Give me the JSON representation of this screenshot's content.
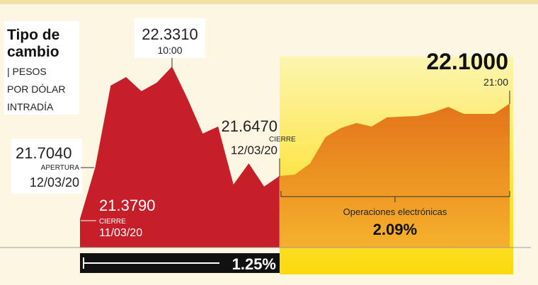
{
  "chart_data": {
    "type": "area",
    "title": "Tipo de cambio",
    "subtitle": [
      "| PESOS",
      "POR DÓLAR",
      "INTRADÍA"
    ],
    "categories": [
      null,
      null,
      null,
      null,
      null,
      null,
      null,
      null,
      null,
      null,
      null,
      null,
      null,
      null,
      null,
      null,
      null,
      null,
      null,
      null,
      null,
      null,
      null,
      null,
      null,
      null,
      null,
      null,
      null
    ],
    "series": [
      {
        "color": "#c61f2a",
        "values": [
          21.379,
          21.704,
          22.212,
          22.265,
          22.177,
          22.23,
          22.331,
          22.132,
          21.912,
          21.956,
          21.594,
          21.726,
          21.581,
          21.647,
          null,
          null,
          null,
          null,
          null,
          null,
          null,
          null,
          null,
          null,
          null,
          null,
          null,
          null,
          null
        ]
      },
      {
        "color": "#ef9418",
        "values": [
          null,
          null,
          null,
          null,
          null,
          null,
          null,
          null,
          null,
          null,
          null,
          null,
          null,
          21.647,
          21.656,
          21.726,
          21.89,
          21.947,
          21.978,
          21.956,
          22.013,
          22.018,
          22.022,
          22.044,
          22.079,
          22.035,
          22.035,
          22.035,
          22.1
        ]
      }
    ],
    "ylim": [
      21.2,
      22.57
    ],
    "annotations": {
      "peak": {
        "value": "22.3310",
        "time": "10:00"
      },
      "open": {
        "value": "21.7040",
        "label": "APERTURA",
        "date": "12/03/20"
      },
      "prev_close": {
        "value": "21.3790",
        "label": "CIERRE",
        "date": "11/03/20"
      },
      "close": {
        "value": "21.6470",
        "label": "CIERRE",
        "date": "12/03/20"
      },
      "last": {
        "value": "22.1000",
        "time": "21:00"
      },
      "electronic": {
        "label": "Operaciones electrónicas",
        "change": "2.09%"
      },
      "session_change": "1.25%"
    }
  }
}
